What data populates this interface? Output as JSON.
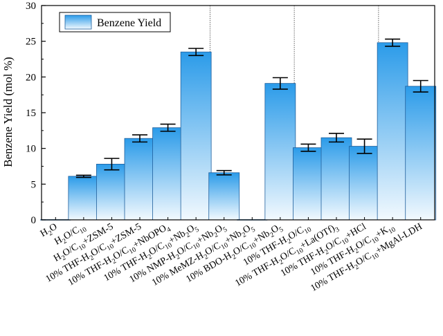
{
  "chart_data": {
    "type": "bar",
    "title": "",
    "xlabel": "",
    "ylabel": "Benzene Yield (mol %)",
    "ylim": [
      0,
      30
    ],
    "yticks": [
      0,
      5,
      10,
      15,
      20,
      25,
      30
    ],
    "grid": false,
    "legend": {
      "entries": [
        "Benzene Yield"
      ],
      "position": "top-left"
    },
    "group_dividers_after": [
      6,
      9,
      12
    ],
    "categories": [
      "H2O",
      "H2O/C10",
      "H2O/C10+ZSM-5",
      "10% THF-H2O/C10+ZSM-5",
      "10% THF-H2O/C10+NbOPO4",
      "10% THF-H2O/C10+Nb2O5",
      "10% NMP-H2O/C10+Nb2O5",
      "10% MeMZ-H2O/C10+Nb2O5",
      "10% BDO-H2O/C10+Nb2O5",
      "10% THF-H2O/C10",
      "10% THF-H2O/C10+La(OTf)3",
      "10% THF-H2O/C10+HCl",
      "10% THF-H2O/C10+K10",
      "10% THF-H2O/C10+MgAl-LDH"
    ],
    "series": [
      {
        "name": "Benzene Yield",
        "values": [
          0,
          6.1,
          7.8,
          11.4,
          12.9,
          23.5,
          6.6,
          0,
          19.1,
          10.1,
          11.5,
          10.3,
          24.8,
          18.7
        ],
        "errors": [
          0,
          0.15,
          0.8,
          0.5,
          0.5,
          0.5,
          0.3,
          0,
          0.8,
          0.5,
          0.6,
          1.0,
          0.5,
          0.8
        ]
      }
    ],
    "colors": {
      "bar_top": "#2b9be9",
      "bar_bottom": "#f2f9fe",
      "bar_edge": "#1f5f9c",
      "axis": "#000000",
      "divider": "#555555"
    }
  }
}
